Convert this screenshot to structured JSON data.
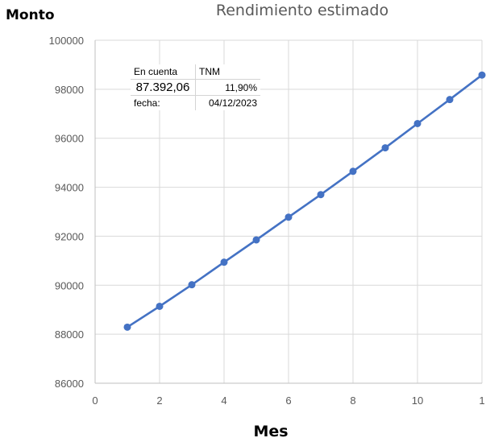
{
  "chart_data": {
    "type": "line",
    "title": "Rendimiento estimado",
    "xlabel": "Mes",
    "ylabel": "Monto",
    "xlim": [
      0,
      12
    ],
    "ylim": [
      86000,
      100000
    ],
    "x_ticks": [
      "0",
      "2",
      "4",
      "6",
      "8",
      "10",
      "1"
    ],
    "y_ticks": [
      "86000",
      "88000",
      "90000",
      "92000",
      "94000",
      "96000",
      "98000",
      "100000"
    ],
    "grid": true,
    "color": "#4472c4",
    "series": [
      {
        "x": [
          1,
          2,
          3,
          4,
          5,
          6,
          7,
          8,
          9,
          10,
          11,
          12
        ],
        "values": [
          88290,
          89140,
          90020,
          90940,
          91850,
          92780,
          93700,
          94650,
          95610,
          96600,
          97580,
          98580
        ]
      }
    ]
  },
  "info_table": {
    "header_left": "En cuenta",
    "header_right": "TNM",
    "amount": "87.392,06",
    "rate": "11,90%",
    "date_label": "fecha:",
    "date_value": "04/12/2023"
  }
}
